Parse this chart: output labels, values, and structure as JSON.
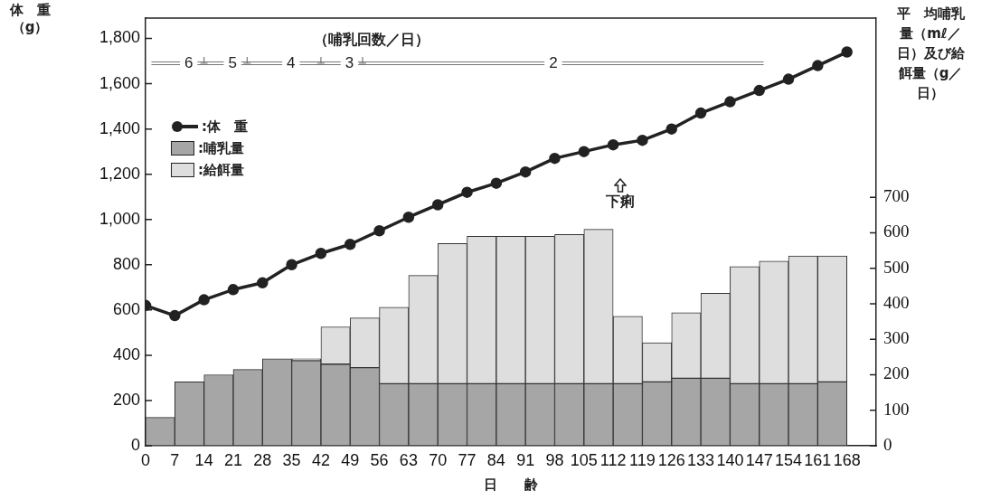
{
  "chart_data": {
    "type": "bar",
    "xlabel": "日　　齢",
    "ylabel": "体　重（g）",
    "y2label": "平　均哺乳量（mℓ／日）及び給餌量（g／日）",
    "x": [
      3.5,
      10.5,
      17.5,
      24.5,
      31.5,
      38.5,
      45.5,
      52.5,
      59.5,
      66.5,
      73.5,
      80.5,
      87.5,
      94.5,
      101.5,
      108.5,
      115.5,
      122.5,
      129.5,
      136.5,
      143.5,
      150.5,
      157.5,
      164.5
    ],
    "stacked": true,
    "series": [
      {
        "name": ":体　重",
        "type": "line",
        "color": "#222222",
        "x": [
          0,
          7,
          14,
          21,
          28,
          35,
          42,
          49,
          56,
          63,
          70,
          77,
          84,
          91,
          98,
          105,
          112,
          119,
          126,
          133,
          140,
          147,
          154,
          161,
          168
        ],
        "values": [
          620,
          575,
          645,
          690,
          720,
          800,
          850,
          890,
          950,
          1010,
          1065,
          1120,
          1160,
          1210,
          1270,
          1300,
          1330,
          1350,
          1400,
          1470,
          1520,
          1570,
          1620,
          1680,
          1740
        ]
      },
      {
        "name": ":哺乳量",
        "color": "#a6a6a6",
        "axis": "y2",
        "values": [
          80,
          180,
          200,
          215,
          245,
          240,
          230,
          220,
          175,
          175,
          175,
          175,
          175,
          175,
          175,
          175,
          175,
          180,
          190,
          190,
          175,
          175,
          175,
          180
        ]
      },
      {
        "name": ":給餌量",
        "color": "#dedede",
        "axis": "y2",
        "values": [
          null,
          null,
          null,
          null,
          null,
          5,
          105,
          140,
          215,
          305,
          395,
          415,
          415,
          415,
          420,
          435,
          190,
          110,
          185,
          240,
          330,
          345,
          360,
          355
        ]
      }
    ],
    "xlim": [
      0,
      175
    ],
    "xticks": [
      0,
      7,
      14,
      21,
      28,
      35,
      42,
      49,
      56,
      63,
      70,
      77,
      84,
      91,
      98,
      105,
      112,
      119,
      126,
      133,
      140,
      147,
      154,
      161,
      168
    ],
    "ylim": [
      0,
      1890
    ],
    "yticks": [
      0,
      200,
      400,
      600,
      800,
      {
        "value": 1000,
        "label": "1,000"
      },
      {
        "value": 1200,
        "label": "1,200"
      },
      {
        "value": 1400,
        "label": "1,400"
      },
      {
        "value": 1600,
        "label": "1,600"
      },
      {
        "value": 1800,
        "label": "1,800"
      }
    ],
    "y2lim": [
      0,
      1205
    ],
    "y2ticks": [
      0,
      100,
      200,
      300,
      400,
      500,
      600,
      700
    ],
    "annotations": [
      "（哺乳回数／日）",
      "下痢",
      "6",
      "5",
      "4",
      "3",
      "2"
    ],
    "grid": false,
    "legend": "top left",
    "marker": "circle",
    "line_style": "solid"
  }
}
